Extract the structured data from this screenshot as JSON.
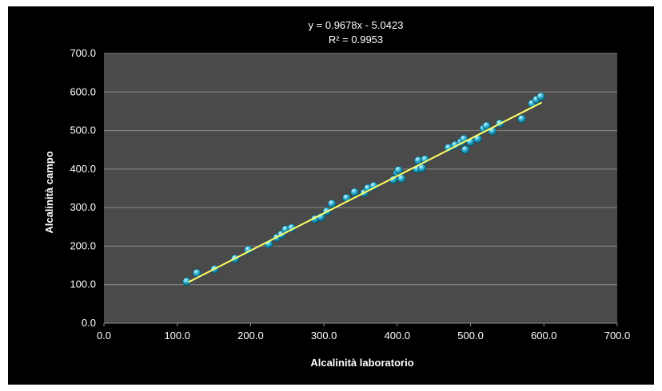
{
  "chart_data": {
    "type": "scatter",
    "title": "",
    "xlabel": "Alcalinità laboratorio",
    "ylabel": "Alcalinità campo",
    "xlim": [
      0,
      700
    ],
    "ylim": [
      0,
      700
    ],
    "x_ticks": [
      "0.0",
      "100.0",
      "200.0",
      "300.0",
      "400.0",
      "500.0",
      "600.0",
      "700.0"
    ],
    "y_ticks": [
      "0.0",
      "100.0",
      "200.0",
      "300.0",
      "400.0",
      "500.0",
      "600.0",
      "700.0"
    ],
    "grid": true,
    "legend": "none",
    "trendline": {
      "type": "linear",
      "slope": 0.9678,
      "intercept": -5.0423,
      "x_range": [
        115,
        597
      ],
      "equation_label": "y = 0.9678x - 5.0423",
      "r2_label": "R² = 0.9953",
      "color": "#ffff66"
    },
    "colors": {
      "background": "#000000",
      "plot_area": "#4a4a4a",
      "gridline": "#8c8c8c",
      "marker": "#30b6d8",
      "text": "#ffffff"
    },
    "series": [
      {
        "points": [
          [
            113,
            108
          ],
          [
            127,
            130
          ],
          [
            151,
            140
          ],
          [
            179,
            167
          ],
          [
            197,
            190
          ],
          [
            225,
            205
          ],
          [
            236,
            222
          ],
          [
            242,
            230
          ],
          [
            248,
            243
          ],
          [
            256,
            247
          ],
          [
            288,
            270
          ],
          [
            296,
            275
          ],
          [
            304,
            290
          ],
          [
            311,
            310
          ],
          [
            331,
            325
          ],
          [
            342,
            340
          ],
          [
            355,
            338
          ],
          [
            360,
            350
          ],
          [
            368,
            356
          ],
          [
            395,
            372
          ],
          [
            400,
            390
          ],
          [
            402,
            397
          ],
          [
            406,
            375
          ],
          [
            427,
            400
          ],
          [
            429,
            422
          ],
          [
            434,
            402
          ],
          [
            438,
            425
          ],
          [
            470,
            455
          ],
          [
            479,
            462
          ],
          [
            487,
            470
          ],
          [
            491,
            478
          ],
          [
            493,
            450
          ],
          [
            500,
            470
          ],
          [
            510,
            478
          ],
          [
            518,
            505
          ],
          [
            522,
            512
          ],
          [
            530,
            498
          ],
          [
            540,
            518
          ],
          [
            570,
            530
          ],
          [
            584,
            570
          ],
          [
            590,
            580
          ],
          [
            596,
            588
          ]
        ]
      }
    ]
  }
}
